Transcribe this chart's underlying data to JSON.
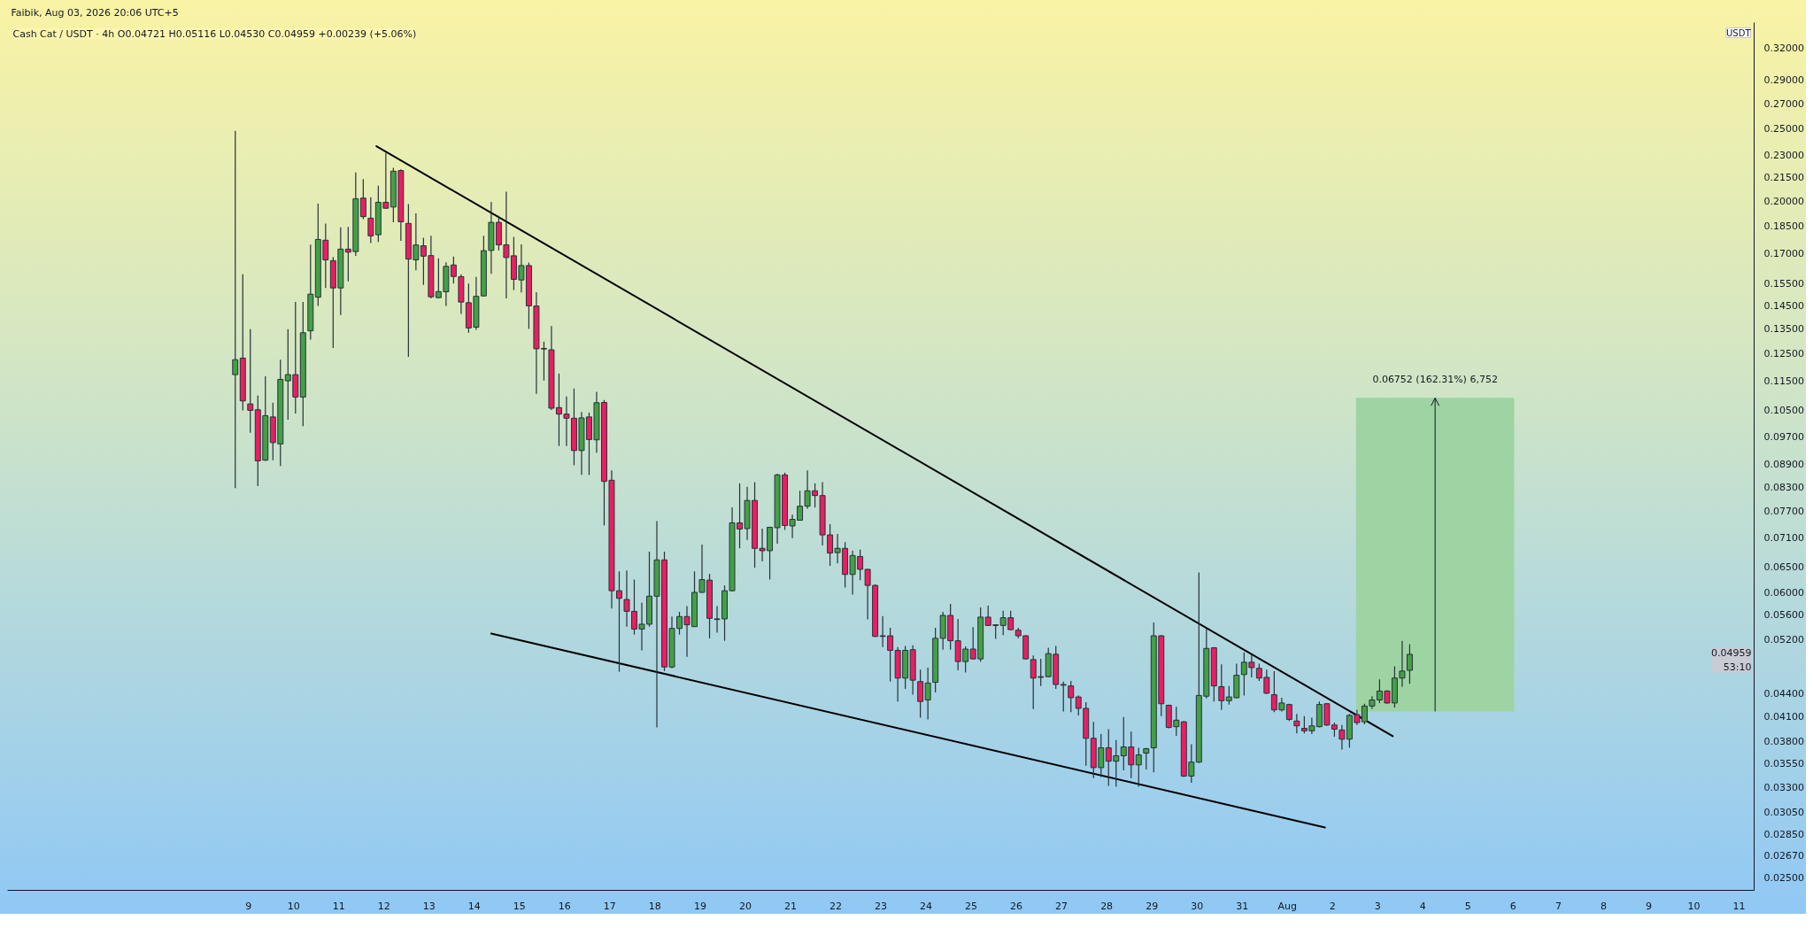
{
  "chart_data": {
    "type": "candlestick",
    "title": "Faibik, Aug 03, 2026 20:06 UTC+5",
    "subtitle": "Cash Cat / USDT · 4h O0.04721 H0.05116 L0.04530 C0.04959 +0.00239 (+5.06%)",
    "ylabel": "USDT",
    "x": [
      "2026-07-08T17:00",
      "2026-07-08T21:00",
      "2026-07-09T01:00",
      "2026-07-09T05:00",
      "2026-07-09T09:00",
      "2026-07-09T13:00",
      "2026-07-09T17:00",
      "2026-07-09T21:00",
      "2026-07-10T01:00",
      "2026-07-10T05:00",
      "2026-07-10T09:00",
      "2026-07-10T13:00",
      "2026-07-10T17:00",
      "2026-07-10T21:00",
      "2026-07-11T01:00",
      "2026-07-11T05:00",
      "2026-07-11T09:00",
      "2026-07-11T13:00",
      "2026-07-11T17:00",
      "2026-07-11T21:00",
      "2026-07-12T01:00",
      "2026-07-12T05:00",
      "2026-07-12T09:00",
      "2026-07-12T13:00",
      "2026-07-12T17:00",
      "2026-07-12T21:00",
      "2026-07-13T01:00",
      "2026-07-13T05:00",
      "2026-07-13T09:00",
      "2026-07-13T13:00",
      "2026-07-13T17:00",
      "2026-07-13T21:00",
      "2026-07-14T01:00",
      "2026-07-14T05:00",
      "2026-07-14T09:00",
      "2026-07-14T13:00",
      "2026-07-14T17:00",
      "2026-07-14T21:00",
      "2026-07-15T01:00",
      "2026-07-15T05:00",
      "2026-07-15T09:00",
      "2026-07-15T13:00",
      "2026-07-15T17:00",
      "2026-07-15T21:00",
      "2026-07-16T01:00",
      "2026-07-16T05:00",
      "2026-07-16T09:00",
      "2026-07-16T13:00",
      "2026-07-16T17:00",
      "2026-07-16T21:00",
      "2026-07-17T01:00",
      "2026-07-17T05:00",
      "2026-07-17T09:00",
      "2026-07-17T13:00",
      "2026-07-17T17:00",
      "2026-07-17T21:00",
      "2026-07-18T01:00",
      "2026-07-18T05:00",
      "2026-07-18T09:00",
      "2026-07-18T13:00",
      "2026-07-18T17:00",
      "2026-07-18T21:00",
      "2026-07-19T01:00",
      "2026-07-19T05:00",
      "2026-07-19T09:00",
      "2026-07-19T13:00",
      "2026-07-19T17:00",
      "2026-07-19T21:00",
      "2026-07-20T01:00",
      "2026-07-20T05:00",
      "2026-07-20T09:00",
      "2026-07-20T13:00",
      "2026-07-20T17:00",
      "2026-07-20T21:00",
      "2026-07-21T01:00",
      "2026-07-21T05:00",
      "2026-07-21T09:00",
      "2026-07-21T13:00",
      "2026-07-21T17:00",
      "2026-07-21T21:00",
      "2026-07-22T01:00",
      "2026-07-22T05:00",
      "2026-07-22T09:00",
      "2026-07-22T13:00",
      "2026-07-22T17:00",
      "2026-07-22T21:00",
      "2026-07-23T01:00",
      "2026-07-23T05:00",
      "2026-07-23T09:00",
      "2026-07-23T13:00",
      "2026-07-23T17:00",
      "2026-07-23T21:00",
      "2026-07-24T01:00",
      "2026-07-24T05:00",
      "2026-07-24T09:00",
      "2026-07-24T13:00",
      "2026-07-24T17:00",
      "2026-07-24T21:00",
      "2026-07-25T01:00",
      "2026-07-25T05:00",
      "2026-07-25T09:00",
      "2026-07-25T13:00",
      "2026-07-25T17:00",
      "2026-07-25T21:00",
      "2026-07-26T01:00",
      "2026-07-26T05:00",
      "2026-07-26T09:00",
      "2026-07-26T13:00",
      "2026-07-26T17:00",
      "2026-07-26T21:00",
      "2026-07-27T01:00",
      "2026-07-27T05:00",
      "2026-07-27T09:00",
      "2026-07-27T13:00",
      "2026-07-27T17:00",
      "2026-07-27T21:00",
      "2026-07-28T01:00",
      "2026-07-28T05:00",
      "2026-07-28T09:00",
      "2026-07-28T13:00",
      "2026-07-28T17:00",
      "2026-07-28T21:00",
      "2026-07-29T01:00",
      "2026-07-29T05:00",
      "2026-07-29T09:00",
      "2026-07-29T13:00",
      "2026-07-29T17:00",
      "2026-07-29T21:00",
      "2026-07-30T01:00",
      "2026-07-30T05:00",
      "2026-07-30T09:00",
      "2026-07-30T13:00",
      "2026-07-30T17:00",
      "2026-07-30T21:00",
      "2026-07-31T01:00",
      "2026-07-31T05:00",
      "2026-07-31T09:00",
      "2026-07-31T13:00",
      "2026-07-31T17:00",
      "2026-07-31T21:00",
      "2026-08-01T01:00",
      "2026-08-01T05:00",
      "2026-08-01T09:00",
      "2026-08-01T13:00",
      "2026-08-01T17:00",
      "2026-08-01T21:00",
      "2026-08-02T01:00",
      "2026-08-02T05:00",
      "2026-08-02T09:00",
      "2026-08-02T13:00",
      "2026-08-02T17:00",
      "2026-08-02T21:00",
      "2026-08-03T01:00",
      "2026-08-03T05:00",
      "2026-08-03T09:00",
      "2026-08-03T13:00",
      "2026-08-03T17:00"
    ],
    "ohlc": [
      [
        0.1172,
        0.248,
        0.0827,
        0.1227
      ],
      [
        0.1233,
        0.1596,
        0.105,
        0.1081
      ],
      [
        0.1071,
        0.1348,
        0.098,
        0.105
      ],
      [
        0.1052,
        0.1099,
        0.0832,
        0.0899
      ],
      [
        0.0901,
        0.1166,
        0.0899,
        0.1033
      ],
      [
        0.1029,
        0.1075,
        0.0901,
        0.0951
      ],
      [
        0.0947,
        0.1227,
        0.0885,
        0.1155
      ],
      [
        0.115,
        0.1348,
        0.102,
        0.1172
      ],
      [
        0.1172,
        0.1466,
        0.104,
        0.1094
      ],
      [
        0.1094,
        0.1466,
        0.1,
        0.1333
      ],
      [
        0.1341,
        0.1748,
        0.1305,
        0.1501
      ],
      [
        0.1487,
        0.1983,
        0.1448,
        0.1776
      ],
      [
        0.1772,
        0.1865,
        0.153,
        0.1668
      ],
      [
        0.1664,
        0.1683,
        0.1272,
        0.153
      ],
      [
        0.153,
        0.1843,
        0.1408,
        0.1724
      ],
      [
        0.1724,
        0.1846,
        0.1561,
        0.1708
      ],
      [
        0.1711,
        0.2182,
        0.1688,
        0.2013
      ],
      [
        0.2017,
        0.2139,
        0.189,
        0.1905
      ],
      [
        0.1896,
        0.2022,
        0.1756,
        0.1796
      ],
      [
        0.1802,
        0.2095,
        0.1763,
        0.1991
      ],
      [
        0.1991,
        0.2317,
        0.1952,
        0.1955
      ],
      [
        0.1962,
        0.2214,
        0.1872,
        0.2191
      ],
      [
        0.2195,
        0.2203,
        0.1768,
        0.1875
      ],
      [
        0.1866,
        0.198,
        0.1238,
        0.1672
      ],
      [
        0.1668,
        0.1924,
        0.1615,
        0.1746
      ],
      [
        0.1742,
        0.1785,
        0.1544,
        0.1687
      ],
      [
        0.169,
        0.1796,
        0.1482,
        0.1489
      ],
      [
        0.1485,
        0.1676,
        0.1482,
        0.1513
      ],
      [
        0.1512,
        0.1655,
        0.1448,
        0.1635
      ],
      [
        0.1642,
        0.1685,
        0.1551,
        0.1585
      ],
      [
        0.1584,
        0.1596,
        0.1413,
        0.1465
      ],
      [
        0.1462,
        0.1551,
        0.1333,
        0.1353
      ],
      [
        0.1356,
        0.1583,
        0.1345,
        0.1491
      ],
      [
        0.1493,
        0.1796,
        0.149,
        0.1716
      ],
      [
        0.1717,
        0.1993,
        0.1598,
        0.1872
      ],
      [
        0.1872,
        0.191,
        0.1717,
        0.1747
      ],
      [
        0.1747,
        0.2057,
        0.1482,
        0.168
      ],
      [
        0.1689,
        0.179,
        0.152,
        0.1571
      ],
      [
        0.1568,
        0.1749,
        0.1509,
        0.1639
      ],
      [
        0.1639,
        0.1654,
        0.1349,
        0.1448
      ],
      [
        0.1447,
        0.151,
        0.1105,
        0.1269
      ],
      [
        0.127,
        0.1297,
        0.1151,
        0.1268
      ],
      [
        0.1265,
        0.1361,
        0.1051,
        0.1057
      ],
      [
        0.1059,
        0.1176,
        0.0941,
        0.1038
      ],
      [
        0.1038,
        0.1096,
        0.0941,
        0.1025
      ],
      [
        0.1025,
        0.1123,
        0.0887,
        0.0928
      ],
      [
        0.0928,
        0.1045,
        0.0861,
        0.1026
      ],
      [
        0.1029,
        0.1043,
        0.0861,
        0.096
      ],
      [
        0.0959,
        0.1112,
        0.0922,
        0.1075
      ],
      [
        0.1076,
        0.1084,
        0.0737,
        0.0844
      ],
      [
        0.0847,
        0.0873,
        0.0571,
        0.0603
      ],
      [
        0.0603,
        0.064,
        0.047,
        0.0589
      ],
      [
        0.0587,
        0.0642,
        0.054,
        0.0566
      ],
      [
        0.0566,
        0.0624,
        0.0527,
        0.0536
      ],
      [
        0.0536,
        0.0581,
        0.0502,
        0.0544
      ],
      [
        0.0544,
        0.068,
        0.054,
        0.0593
      ],
      [
        0.0593,
        0.0747,
        0.0396,
        0.0663
      ],
      [
        0.0663,
        0.068,
        0.0471,
        0.0477
      ],
      [
        0.0477,
        0.0557,
        0.0475,
        0.0537
      ],
      [
        0.0537,
        0.0565,
        0.0527,
        0.0557
      ],
      [
        0.0557,
        0.0575,
        0.0492,
        0.0543
      ],
      [
        0.054,
        0.064,
        0.054,
        0.06
      ],
      [
        0.06,
        0.0695,
        0.0599,
        0.0624
      ],
      [
        0.0623,
        0.0635,
        0.0521,
        0.0554
      ],
      [
        0.0553,
        0.0575,
        0.053,
        0.0552
      ],
      [
        0.0553,
        0.0613,
        0.0517,
        0.0603
      ],
      [
        0.0603,
        0.0779,
        0.0602,
        0.0743
      ],
      [
        0.0743,
        0.0839,
        0.0687,
        0.0729
      ],
      [
        0.073,
        0.083,
        0.0705,
        0.0796
      ],
      [
        0.0796,
        0.0842,
        0.0647,
        0.0687
      ],
      [
        0.0687,
        0.073,
        0.066,
        0.0682
      ],
      [
        0.0682,
        0.0734,
        0.0624,
        0.0733
      ],
      [
        0.0732,
        0.0864,
        0.0697,
        0.0861
      ],
      [
        0.0861,
        0.0867,
        0.0727,
        0.0737
      ],
      [
        0.0736,
        0.0762,
        0.0709,
        0.0751
      ],
      [
        0.0749,
        0.082,
        0.0749,
        0.0782
      ],
      [
        0.0782,
        0.0873,
        0.0776,
        0.082
      ],
      [
        0.082,
        0.0839,
        0.0779,
        0.0808
      ],
      [
        0.0808,
        0.0842,
        0.0693,
        0.0716
      ],
      [
        0.0716,
        0.074,
        0.0651,
        0.0677
      ],
      [
        0.0678,
        0.0718,
        0.0656,
        0.0687
      ],
      [
        0.0687,
        0.07,
        0.0609,
        0.0634
      ],
      [
        0.0634,
        0.0682,
        0.0596,
        0.0672
      ],
      [
        0.067,
        0.0684,
        0.0623,
        0.0644
      ],
      [
        0.0644,
        0.0645,
        0.0552,
        0.0613
      ],
      [
        0.0613,
        0.0615,
        0.0523,
        0.0524
      ],
      [
        0.0525,
        0.0558,
        0.0507,
        0.0524
      ],
      [
        0.0525,
        0.0538,
        0.0456,
        0.0502
      ],
      [
        0.0502,
        0.0507,
        0.0429,
        0.0461
      ],
      [
        0.0461,
        0.0509,
        0.0446,
        0.0502
      ],
      [
        0.0503,
        0.051,
        0.0438,
        0.0458
      ],
      [
        0.0456,
        0.0473,
        0.0408,
        0.0429
      ],
      [
        0.0431,
        0.0476,
        0.0406,
        0.0454
      ],
      [
        0.0455,
        0.0538,
        0.0441,
        0.0521
      ],
      [
        0.0521,
        0.0565,
        0.0503,
        0.0559
      ],
      [
        0.0559,
        0.0579,
        0.0503,
        0.0517
      ],
      [
        0.0517,
        0.0553,
        0.0472,
        0.0485
      ],
      [
        0.0485,
        0.0508,
        0.0469,
        0.0504
      ],
      [
        0.0504,
        0.0539,
        0.0488,
        0.0489
      ],
      [
        0.0489,
        0.0573,
        0.0485,
        0.0556
      ],
      [
        0.0556,
        0.0576,
        0.0541,
        0.0542
      ],
      [
        0.0543,
        0.0544,
        0.052,
        0.0542
      ],
      [
        0.0542,
        0.0567,
        0.0526,
        0.0555
      ],
      [
        0.0555,
        0.0567,
        0.0534,
        0.0535
      ],
      [
        0.0534,
        0.0538,
        0.0521,
        0.0525
      ],
      [
        0.0525,
        0.0526,
        0.0488,
        0.0489
      ],
      [
        0.0488,
        0.0494,
        0.0419,
        0.0461
      ],
      [
        0.0463,
        0.0489,
        0.045,
        0.0462
      ],
      [
        0.0463,
        0.0506,
        0.0462,
        0.0497
      ],
      [
        0.0496,
        0.0509,
        0.0446,
        0.0452
      ],
      [
        0.0452,
        0.0456,
        0.0416,
        0.0451
      ],
      [
        0.045,
        0.0457,
        0.0415,
        0.0434
      ],
      [
        0.0435,
        0.0437,
        0.0411,
        0.042
      ],
      [
        0.042,
        0.0428,
        0.0352,
        0.0383
      ],
      [
        0.0383,
        0.0403,
        0.0339,
        0.035
      ],
      [
        0.035,
        0.0388,
        0.034,
        0.0372
      ],
      [
        0.0372,
        0.0394,
        0.0331,
        0.0357
      ],
      [
        0.0357,
        0.0381,
        0.033,
        0.0363
      ],
      [
        0.0363,
        0.0409,
        0.0347,
        0.0373
      ],
      [
        0.0373,
        0.0391,
        0.0339,
        0.0353
      ],
      [
        0.0353,
        0.0372,
        0.033,
        0.0364
      ],
      [
        0.0366,
        0.0372,
        0.0348,
        0.0371
      ],
      [
        0.0372,
        0.0547,
        0.0345,
        0.0525
      ],
      [
        0.0525,
        0.0526,
        0.041,
        0.0426
      ],
      [
        0.0424,
        0.0425,
        0.0395,
        0.0396
      ],
      [
        0.0397,
        0.0422,
        0.0386,
        0.0405
      ],
      [
        0.0403,
        0.0404,
        0.034,
        0.0341
      ],
      [
        0.0341,
        0.0376,
        0.0334,
        0.0356
      ],
      [
        0.0356,
        0.0638,
        0.0355,
        0.0437
      ],
      [
        0.0436,
        0.0537,
        0.0433,
        0.0505
      ],
      [
        0.0506,
        0.0507,
        0.0429,
        0.045
      ],
      [
        0.0449,
        0.0481,
        0.0418,
        0.043
      ],
      [
        0.043,
        0.045,
        0.0425,
        0.0435
      ],
      [
        0.0434,
        0.0482,
        0.0433,
        0.0465
      ],
      [
        0.0466,
        0.0499,
        0.0437,
        0.0484
      ],
      [
        0.0484,
        0.0496,
        0.0462,
        0.0476
      ],
      [
        0.0475,
        0.0482,
        0.0457,
        0.0461
      ],
      [
        0.0462,
        0.0473,
        0.0439,
        0.044
      ],
      [
        0.0438,
        0.0471,
        0.0415,
        0.0418
      ],
      [
        0.0418,
        0.0434,
        0.0416,
        0.0427
      ],
      [
        0.0425,
        0.0426,
        0.0404,
        0.0406
      ],
      [
        0.0404,
        0.0413,
        0.0389,
        0.0398
      ],
      [
        0.0395,
        0.041,
        0.0389,
        0.0392
      ],
      [
        0.0392,
        0.0408,
        0.0388,
        0.0398
      ],
      [
        0.0397,
        0.0429,
        0.0396,
        0.0425
      ],
      [
        0.0426,
        0.0427,
        0.0398,
        0.0399
      ],
      [
        0.0399,
        0.0402,
        0.0385,
        0.0394
      ],
      [
        0.0393,
        0.0399,
        0.037,
        0.0382
      ],
      [
        0.0382,
        0.0413,
        0.0372,
        0.0411
      ],
      [
        0.0412,
        0.0418,
        0.0399,
        0.0402
      ],
      [
        0.0403,
        0.0426,
        0.04,
        0.0423
      ],
      [
        0.0423,
        0.0436,
        0.0419,
        0.0431
      ],
      [
        0.0431,
        0.0459,
        0.0427,
        0.0443
      ],
      [
        0.0443,
        0.0444,
        0.0426,
        0.0427
      ],
      [
        0.0427,
        0.0478,
        0.0421,
        0.0461
      ],
      [
        0.0461,
        0.0517,
        0.0449,
        0.0471
      ],
      [
        0.04721,
        0.05116,
        0.0453,
        0.04959
      ]
    ],
    "colors": [
      "#43a047",
      "#e91e63",
      "#e91e63",
      "#e91e63",
      "#43a047",
      "#e91e63",
      "#43a047",
      "#43a047",
      "#e91e63",
      "#43a047",
      "#43a047",
      "#43a047",
      "#e91e63",
      "#e91e63",
      "#43a047",
      "#e91e63",
      "#43a047",
      "#e91e63",
      "#e91e63",
      "#43a047",
      "#e91e63",
      "#43a047",
      "#e91e63",
      "#e91e63",
      "#43a047",
      "#e91e63",
      "#e91e63",
      "#43a047",
      "#43a047",
      "#e91e63",
      "#e91e63",
      "#e91e63",
      "#43a047",
      "#43a047",
      "#43a047",
      "#e91e63",
      "#e91e63",
      "#e91e63",
      "#43a047",
      "#e91e63",
      "#e91e63",
      "#e91e63",
      "#e91e63",
      "#e91e63",
      "#e91e63",
      "#e91e63",
      "#43a047",
      "#e91e63",
      "#43a047",
      "#e91e63",
      "#e91e63",
      "#e91e63",
      "#e91e63",
      "#e91e63",
      "#43a047",
      "#43a047",
      "#43a047",
      "#e91e63",
      "#43a047",
      "#43a047",
      "#e91e63",
      "#43a047",
      "#43a047",
      "#e91e63",
      "#e91e63",
      "#43a047",
      "#43a047",
      "#e91e63",
      "#43a047",
      "#e91e63",
      "#e91e63",
      "#43a047",
      "#43a047",
      "#e91e63",
      "#43a047",
      "#43a047",
      "#43a047",
      "#e91e63",
      "#e91e63",
      "#e91e63",
      "#43a047",
      "#e91e63",
      "#43a047",
      "#e91e63",
      "#e91e63",
      "#e91e63",
      "#e91e63",
      "#e91e63",
      "#e91e63",
      "#43a047",
      "#e91e63",
      "#e91e63",
      "#43a047",
      "#43a047",
      "#43a047",
      "#e91e63",
      "#e91e63",
      "#43a047",
      "#e91e63",
      "#43a047",
      "#e91e63",
      "#e91e63",
      "#43a047",
      "#e91e63",
      "#e91e63",
      "#e91e63",
      "#e91e63",
      "#e91e63",
      "#43a047",
      "#e91e63",
      "#e91e63",
      "#e91e63",
      "#e91e63",
      "#e91e63",
      "#e91e63",
      "#43a047",
      "#e91e63",
      "#43a047",
      "#43a047",
      "#e91e63",
      "#43a047",
      "#43a047",
      "#43a047",
      "#e91e63",
      "#e91e63",
      "#43a047",
      "#e91e63",
      "#43a047",
      "#43a047",
      "#43a047",
      "#e91e63",
      "#e91e63",
      "#43a047",
      "#43a047",
      "#43a047",
      "#e91e63",
      "#e91e63",
      "#e91e63",
      "#e91e63",
      "#43a047",
      "#e91e63",
      "#e91e63",
      "#e91e63",
      "#43a047",
      "#43a047",
      "#e91e63",
      "#e91e63",
      "#e91e63",
      "#43a047",
      "#e91e63",
      "#43a047",
      "#43a047",
      "#43a047",
      "#e91e63",
      "#43a047",
      "#43a047",
      "#43a047"
    ],
    "series": [
      {
        "type": "bar",
        "x": [
          "2026-08-04T06:30"
        ],
        "base": [
          0.0416
        ],
        "values": [
          0.06752
        ],
        "color": "#9ed3a3"
      },
      {
        "type": "line",
        "x": [
          "2026-07-11T20:00",
          "2026-08-03T08:00"
        ],
        "values": [
          0.2366,
          0.03856
        ],
        "color": "#000000"
      },
      {
        "type": "line",
        "x": [
          "2026-07-14T09:00",
          "2026-08-01T20:00"
        ],
        "values": [
          0.05286,
          0.02912
        ],
        "color": "#000000"
      }
    ],
    "annotations": [
      {
        "text": "0.06752 (162.31%) 6,752",
        "x": "2026-08-04T06:30",
        "y": 0.10912
      },
      "0.04959\n53:10"
    ],
    "xlim": [
      "2026-07-03T16:00",
      "2026-08-11T08:00"
    ],
    "ylim": [
      0.024,
      0.346
    ],
    "xticks": [
      {
        "value": "2026-07-09",
        "label": "9"
      },
      {
        "value": "2026-07-10",
        "label": "10"
      },
      {
        "value": "2026-07-11",
        "label": "11"
      },
      {
        "value": "2026-07-12",
        "label": "12"
      },
      {
        "value": "2026-07-13",
        "label": "13"
      },
      {
        "value": "2026-07-14",
        "label": "14"
      },
      {
        "value": "2026-07-15",
        "label": "15"
      },
      {
        "value": "2026-07-16",
        "label": "16"
      },
      {
        "value": "2026-07-17",
        "label": "17"
      },
      {
        "value": "2026-07-18",
        "label": "18"
      },
      {
        "value": "2026-07-19",
        "label": "19"
      },
      {
        "value": "2026-07-20",
        "label": "20"
      },
      {
        "value": "2026-07-21",
        "label": "21"
      },
      {
        "value": "2026-07-22",
        "label": "22"
      },
      {
        "value": "2026-07-23",
        "label": "23"
      },
      {
        "value": "2026-07-24",
        "label": "24"
      },
      {
        "value": "2026-07-25",
        "label": "25"
      },
      {
        "value": "2026-07-26",
        "label": "26"
      },
      {
        "value": "2026-07-27",
        "label": "27"
      },
      {
        "value": "2026-07-28",
        "label": "28"
      },
      {
        "value": "2026-07-29",
        "label": "29"
      },
      {
        "value": "2026-07-30",
        "label": "30"
      },
      {
        "value": "2026-07-31",
        "label": "31"
      },
      {
        "value": "2026-08-01",
        "label": "Aug"
      },
      {
        "value": "2026-08-02",
        "label": "2"
      },
      {
        "value": "2026-08-03",
        "label": "3"
      },
      {
        "value": "2026-08-04",
        "label": "4"
      },
      {
        "value": "2026-08-05",
        "label": "5"
      },
      {
        "value": "2026-08-06",
        "label": "6"
      },
      {
        "value": "2026-08-07",
        "label": "7"
      },
      {
        "value": "2026-08-08",
        "label": "8"
      },
      {
        "value": "2026-08-09",
        "label": "9"
      },
      {
        "value": "2026-08-10",
        "label": "10"
      },
      {
        "value": "2026-08-11",
        "label": "11"
      }
    ],
    "yticks": [
      {
        "value": 0.025,
        "label": "0.02500"
      },
      {
        "value": 0.0267,
        "label": "0.02670"
      },
      {
        "value": 0.0285,
        "label": "0.02850"
      },
      {
        "value": 0.0305,
        "label": "0.03050"
      },
      {
        "value": 0.033,
        "label": "0.03300"
      },
      {
        "value": 0.0355,
        "label": "0.03550"
      },
      {
        "value": 0.038,
        "label": "0.03800"
      },
      {
        "value": 0.041,
        "label": "0.04100"
      },
      {
        "value": 0.044,
        "label": "0.04400"
      },
      {
        "value": 0.052,
        "label": "0.05200"
      },
      {
        "value": 0.056,
        "label": "0.05600"
      },
      {
        "value": 0.06,
        "label": "0.06000"
      },
      {
        "value": 0.065,
        "label": "0.06500"
      },
      {
        "value": 0.071,
        "label": "0.07100"
      },
      {
        "value": 0.077,
        "label": "0.07700"
      },
      {
        "value": 0.083,
        "label": "0.08300"
      },
      {
        "value": 0.089,
        "label": "0.08900"
      },
      {
        "value": 0.097,
        "label": "0.09700"
      },
      {
        "value": 0.105,
        "label": "0.10500"
      },
      {
        "value": 0.115,
        "label": "0.11500"
      },
      {
        "value": 0.125,
        "label": "0.12500"
      },
      {
        "value": 0.135,
        "label": "0.13500"
      },
      {
        "value": 0.145,
        "label": "0.14500"
      },
      {
        "value": 0.155,
        "label": "0.15500"
      },
      {
        "value": 0.17,
        "label": "0.17000"
      },
      {
        "value": 0.185,
        "label": "0.18500"
      },
      {
        "value": 0.2,
        "label": "0.20000"
      },
      {
        "value": 0.215,
        "label": "0.21500"
      },
      {
        "value": 0.23,
        "label": "0.23000"
      },
      {
        "value": 0.25,
        "label": "0.25000"
      },
      {
        "value": 0.27,
        "label": "0.27000"
      },
      {
        "value": 0.29,
        "label": "0.29000"
      },
      {
        "value": 0.32,
        "label": "0.32000"
      }
    ],
    "log": true,
    "grid": false
  }
}
